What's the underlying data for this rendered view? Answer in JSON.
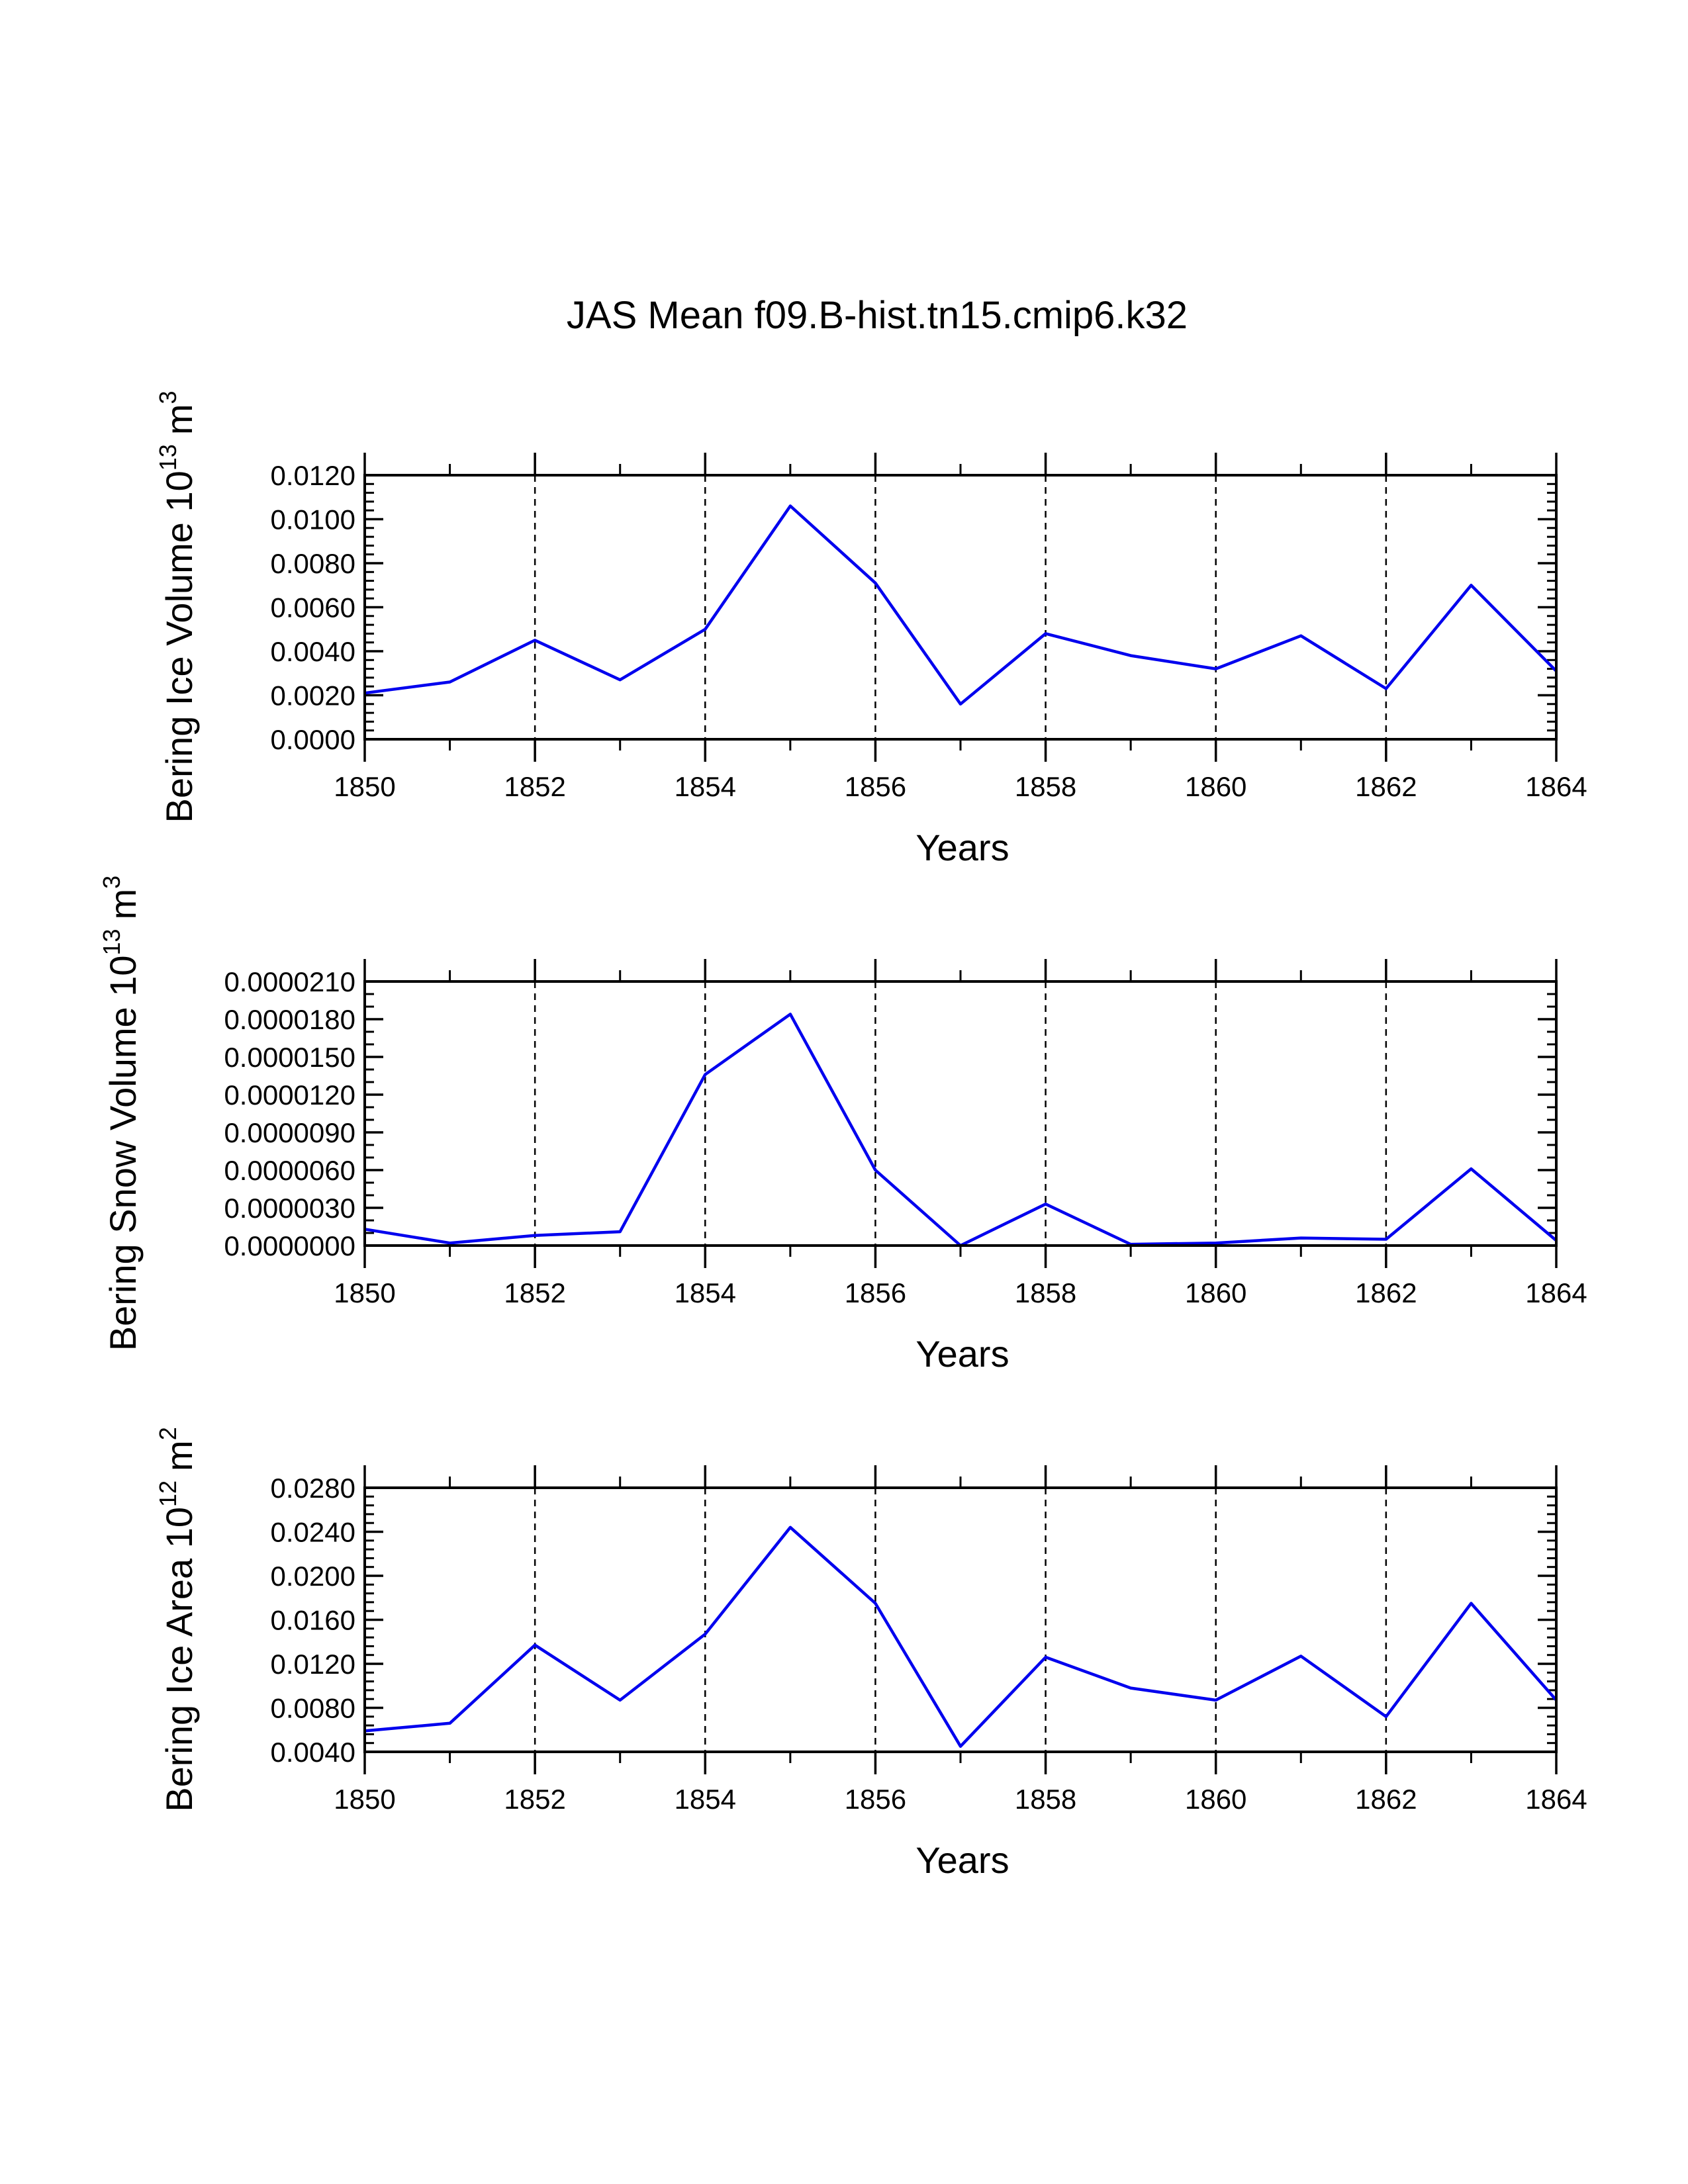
{
  "title": "JAS Mean f09.B-hist.tn15.cmip6.k32",
  "colors": {
    "series": "#0000ee",
    "axes": "#000000",
    "background": "#ffffff"
  },
  "chart_data": [
    {
      "type": "line",
      "title": "",
      "xlabel": "Years",
      "ylabel": "Bering Ice Volume 10",
      "ylabel_exp": "13",
      "ylabel_unit": "m",
      "ylabel_unit_exp": "3",
      "x": [
        1850,
        1851,
        1852,
        1853,
        1854,
        1855,
        1856,
        1857,
        1858,
        1859,
        1860,
        1861,
        1862,
        1863,
        1864
      ],
      "values": [
        0.0021,
        0.0026,
        0.0045,
        0.0027,
        0.005,
        0.0106,
        0.0071,
        0.0016,
        0.0048,
        0.0038,
        0.0032,
        0.0047,
        0.0023,
        0.007,
        0.0031
      ],
      "xlim": [
        1850,
        1864
      ],
      "ylim": [
        0,
        0.012
      ],
      "xticks": [
        1850,
        1852,
        1854,
        1856,
        1858,
        1860,
        1862,
        1864
      ],
      "xtick_labels": [
        "1850",
        "1852",
        "1854",
        "1856",
        "1858",
        "1860",
        "1862",
        "1864"
      ],
      "yticks": [
        0,
        0.002,
        0.004,
        0.006,
        0.008,
        0.01,
        0.012
      ],
      "ytick_labels": [
        "0.0000",
        "0.0020",
        "0.0040",
        "0.0060",
        "0.0080",
        "0.0100",
        "0.0120"
      ],
      "grid": "vertical dashed at major x ticks"
    },
    {
      "type": "line",
      "title": "",
      "xlabel": "Years",
      "ylabel": "Bering Snow Volume 10",
      "ylabel_exp": "13",
      "ylabel_unit": "m",
      "ylabel_unit_exp": "3",
      "x": [
        1850,
        1851,
        1852,
        1853,
        1854,
        1855,
        1856,
        1857,
        1858,
        1859,
        1860,
        1861,
        1862,
        1863,
        1864
      ],
      "values": [
        1.3e-06,
        2e-07,
        8e-07,
        1.1e-06,
        1.36e-05,
        1.84e-05,
        6e-06,
        0.0,
        3.3e-06,
        1e-07,
        2e-07,
        6e-07,
        5e-07,
        6.1e-06,
        4e-07
      ],
      "xlim": [
        1850,
        1864
      ],
      "ylim": [
        0,
        2.1e-05
      ],
      "xticks": [
        1850,
        1852,
        1854,
        1856,
        1858,
        1860,
        1862,
        1864
      ],
      "xtick_labels": [
        "1850",
        "1852",
        "1854",
        "1856",
        "1858",
        "1860",
        "1862",
        "1864"
      ],
      "yticks": [
        0,
        3e-06,
        6e-06,
        9e-06,
        1.2e-05,
        1.5e-05,
        1.8e-05,
        2.1e-05
      ],
      "ytick_labels": [
        "0.0000000",
        "0.0000030",
        "0.0000060",
        "0.0000090",
        "0.0000120",
        "0.0000150",
        "0.0000180",
        "0.0000210"
      ],
      "grid": "vertical dashed at major x ticks"
    },
    {
      "type": "line",
      "title": "",
      "xlabel": "Years",
      "ylabel": "Bering Ice Area 10",
      "ylabel_exp": "12",
      "ylabel_unit": "m",
      "ylabel_unit_exp": "2",
      "x": [
        1850,
        1851,
        1852,
        1853,
        1854,
        1855,
        1856,
        1857,
        1858,
        1859,
        1860,
        1861,
        1862,
        1863,
        1864
      ],
      "values": [
        0.0059,
        0.0066,
        0.0137,
        0.0087,
        0.0147,
        0.0244,
        0.0175,
        0.0045,
        0.0126,
        0.0098,
        0.0087,
        0.0127,
        0.0072,
        0.0175,
        0.0087
      ],
      "xlim": [
        1850,
        1864
      ],
      "ylim": [
        0.004,
        0.028
      ],
      "xticks": [
        1850,
        1852,
        1854,
        1856,
        1858,
        1860,
        1862,
        1864
      ],
      "xtick_labels": [
        "1850",
        "1852",
        "1854",
        "1856",
        "1858",
        "1860",
        "1862",
        "1864"
      ],
      "yticks": [
        0.004,
        0.008,
        0.012,
        0.016,
        0.02,
        0.024,
        0.028
      ],
      "ytick_labels": [
        "0.0040",
        "0.0080",
        "0.0120",
        "0.0160",
        "0.0200",
        "0.0240",
        "0.0280"
      ],
      "grid": "vertical dashed at major x ticks"
    }
  ]
}
